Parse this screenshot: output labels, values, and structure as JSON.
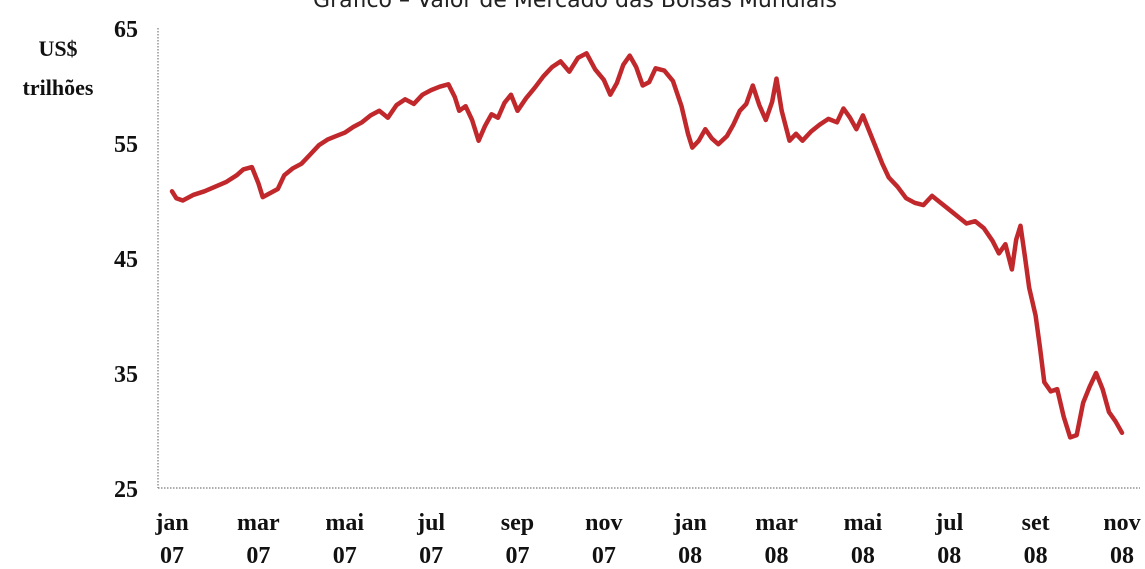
{
  "chart_data": {
    "type": "line",
    "title": "Gráfico – Valor de Mercado das Bolsas Mundiais",
    "ylabel": [
      "US$",
      "trilhões"
    ],
    "xlabel": "",
    "ylim": [
      25,
      65
    ],
    "yticks": [
      25,
      35,
      45,
      55,
      65
    ],
    "grid": false,
    "legend": "none",
    "x_categories": [
      {
        "month": "jan",
        "year": "07"
      },
      {
        "month": "mar",
        "year": "07"
      },
      {
        "month": "mai",
        "year": "07"
      },
      {
        "month": "jul",
        "year": "07"
      },
      {
        "month": "sep",
        "year": "07"
      },
      {
        "month": "nov",
        "year": "07"
      },
      {
        "month": "jan",
        "year": "08"
      },
      {
        "month": "mar",
        "year": "08"
      },
      {
        "month": "mai",
        "year": "08"
      },
      {
        "month": "jul",
        "year": "08"
      },
      {
        "month": "set",
        "year": "08"
      },
      {
        "month": "nov",
        "year": "08"
      }
    ],
    "x_range_months": [
      0,
      22.6
    ],
    "series": [
      {
        "color": "#c0282c",
        "points": [
          [
            0.0,
            50.8
          ],
          [
            0.1,
            50.2
          ],
          [
            0.25,
            50.0
          ],
          [
            0.5,
            50.5
          ],
          [
            0.75,
            50.8
          ],
          [
            1.0,
            51.2
          ],
          [
            1.25,
            51.6
          ],
          [
            1.5,
            52.2
          ],
          [
            1.65,
            52.7
          ],
          [
            1.85,
            52.9
          ],
          [
            2.0,
            51.5
          ],
          [
            2.1,
            50.3
          ],
          [
            2.25,
            50.6
          ],
          [
            2.45,
            51.0
          ],
          [
            2.6,
            52.2
          ],
          [
            2.8,
            52.8
          ],
          [
            3.0,
            53.2
          ],
          [
            3.2,
            54.0
          ],
          [
            3.4,
            54.8
          ],
          [
            3.6,
            55.3
          ],
          [
            3.8,
            55.6
          ],
          [
            4.0,
            55.9
          ],
          [
            4.2,
            56.4
          ],
          [
            4.4,
            56.8
          ],
          [
            4.6,
            57.4
          ],
          [
            4.8,
            57.8
          ],
          [
            5.0,
            57.2
          ],
          [
            5.2,
            58.3
          ],
          [
            5.4,
            58.8
          ],
          [
            5.6,
            58.4
          ],
          [
            5.8,
            59.2
          ],
          [
            6.0,
            59.6
          ],
          [
            6.2,
            59.9
          ],
          [
            6.4,
            60.1
          ],
          [
            6.55,
            59.0
          ],
          [
            6.65,
            57.8
          ],
          [
            6.8,
            58.2
          ],
          [
            6.95,
            57.0
          ],
          [
            7.1,
            55.2
          ],
          [
            7.25,
            56.5
          ],
          [
            7.4,
            57.5
          ],
          [
            7.55,
            57.2
          ],
          [
            7.7,
            58.5
          ],
          [
            7.85,
            59.2
          ],
          [
            8.0,
            57.8
          ],
          [
            8.2,
            58.9
          ],
          [
            8.4,
            59.8
          ],
          [
            8.6,
            60.8
          ],
          [
            8.8,
            61.6
          ],
          [
            9.0,
            62.1
          ],
          [
            9.2,
            61.2
          ],
          [
            9.4,
            62.4
          ],
          [
            9.6,
            62.8
          ],
          [
            9.8,
            61.4
          ],
          [
            10.0,
            60.5
          ],
          [
            10.15,
            59.2
          ],
          [
            10.3,
            60.2
          ],
          [
            10.45,
            61.8
          ],
          [
            10.6,
            62.6
          ],
          [
            10.75,
            61.6
          ],
          [
            10.9,
            60.0
          ],
          [
            11.05,
            60.3
          ],
          [
            11.2,
            61.5
          ],
          [
            11.4,
            61.3
          ],
          [
            11.6,
            60.4
          ],
          [
            11.8,
            58.2
          ],
          [
            11.95,
            55.8
          ],
          [
            12.05,
            54.6
          ],
          [
            12.2,
            55.2
          ],
          [
            12.35,
            56.2
          ],
          [
            12.5,
            55.4
          ],
          [
            12.65,
            54.9
          ],
          [
            12.85,
            55.6
          ],
          [
            13.0,
            56.6
          ],
          [
            13.15,
            57.8
          ],
          [
            13.3,
            58.4
          ],
          [
            13.45,
            60.0
          ],
          [
            13.6,
            58.3
          ],
          [
            13.75,
            57.0
          ],
          [
            13.9,
            58.6
          ],
          [
            14.0,
            60.6
          ],
          [
            14.12,
            57.8
          ],
          [
            14.3,
            55.2
          ],
          [
            14.45,
            55.8
          ],
          [
            14.6,
            55.2
          ],
          [
            14.8,
            56.0
          ],
          [
            15.0,
            56.6
          ],
          [
            15.2,
            57.1
          ],
          [
            15.4,
            56.8
          ],
          [
            15.55,
            58.0
          ],
          [
            15.7,
            57.2
          ],
          [
            15.85,
            56.2
          ],
          [
            16.0,
            57.4
          ],
          [
            16.15,
            56.0
          ],
          [
            16.3,
            54.6
          ],
          [
            16.45,
            53.2
          ],
          [
            16.6,
            52.0
          ],
          [
            16.8,
            51.2
          ],
          [
            17.0,
            50.2
          ],
          [
            17.2,
            49.8
          ],
          [
            17.4,
            49.6
          ],
          [
            17.6,
            50.4
          ],
          [
            17.8,
            49.8
          ],
          [
            18.0,
            49.2
          ],
          [
            18.2,
            48.6
          ],
          [
            18.4,
            48.0
          ],
          [
            18.6,
            48.2
          ],
          [
            18.8,
            47.6
          ],
          [
            19.0,
            46.5
          ],
          [
            19.15,
            45.4
          ],
          [
            19.3,
            46.2
          ],
          [
            19.45,
            44.0
          ],
          [
            19.55,
            46.6
          ],
          [
            19.65,
            47.8
          ],
          [
            19.75,
            45.2
          ],
          [
            19.85,
            42.4
          ],
          [
            20.0,
            40.0
          ],
          [
            20.1,
            37.2
          ],
          [
            20.2,
            34.2
          ],
          [
            20.35,
            33.4
          ],
          [
            20.5,
            33.6
          ],
          [
            20.65,
            31.2
          ],
          [
            20.8,
            29.4
          ],
          [
            20.95,
            29.6
          ],
          [
            21.1,
            32.4
          ],
          [
            21.25,
            33.8
          ],
          [
            21.4,
            35.0
          ],
          [
            21.55,
            33.6
          ],
          [
            21.7,
            31.6
          ],
          [
            21.85,
            30.8
          ],
          [
            22.0,
            29.8
          ]
        ]
      }
    ]
  }
}
